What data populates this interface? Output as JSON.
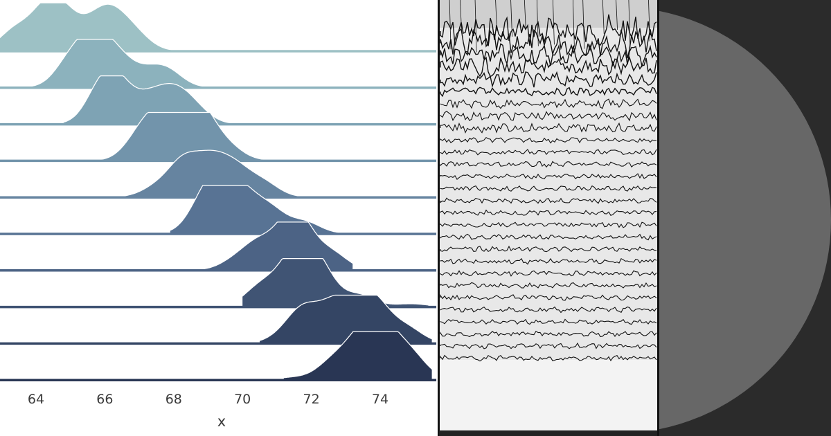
{
  "colors": {
    "ridge_palette": [
      "#9dc1c5",
      "#8cb2bd",
      "#7ea3b4",
      "#7294ab",
      "#6684a0",
      "#587394",
      "#4c6385",
      "#405474",
      "#344564",
      "#293654",
      "#1e2543"
    ],
    "ridge_outline": "#ffffff",
    "seismo_background": "#e9e9e9",
    "seismo_trace": "#111111",
    "disc_face": "#676767",
    "disc_background": "#2b2b2b"
  },
  "chart_data": {
    "type": "area",
    "chart_kind": "ridgeline density",
    "xlabel": "x",
    "ylabel": "",
    "xlim": [
      62.9,
      75.5
    ],
    "x_ticks": [
      64,
      66,
      68,
      70,
      72,
      74
    ],
    "grid": false,
    "legend": "none",
    "series": [
      {
        "peaks": [
          [
            63.4,
            0.45
          ],
          [
            64.3,
            0.85
          ],
          [
            64.9,
            0.6
          ],
          [
            65.8,
            0.55
          ],
          [
            66.3,
            0.55
          ],
          [
            66.9,
            0.3
          ]
        ],
        "range": [
          62.9,
          68.5
        ]
      },
      {
        "peaks": [
          [
            65.0,
            0.55
          ],
          [
            65.7,
            1.0
          ],
          [
            66.4,
            0.55
          ],
          [
            67.2,
            0.25
          ],
          [
            67.8,
            0.35
          ]
        ],
        "range": [
          63.7,
          69.3
        ]
      },
      {
        "peaks": [
          [
            65.9,
            0.7
          ],
          [
            66.4,
            0.7
          ],
          [
            67.3,
            0.5
          ],
          [
            68.0,
            0.6
          ],
          [
            68.6,
            0.3
          ]
        ],
        "range": [
          64.8,
          69.9
        ]
      },
      {
        "peaks": [
          [
            67.0,
            0.45
          ],
          [
            67.6,
            0.85
          ],
          [
            68.4,
            0.9
          ],
          [
            68.9,
            0.65
          ],
          [
            69.6,
            0.25
          ]
        ],
        "range": [
          65.9,
          71.5
        ]
      },
      {
        "peaks": [
          [
            67.5,
            0.2
          ],
          [
            68.3,
            0.75
          ],
          [
            69.1,
            0.7
          ],
          [
            69.8,
            0.55
          ],
          [
            70.6,
            0.3
          ]
        ],
        "range": [
          66.4,
          72.5
        ]
      },
      {
        "peaks": [
          [
            68.8,
            0.45
          ],
          [
            69.3,
            0.95
          ],
          [
            70.0,
            0.75
          ],
          [
            70.8,
            0.5
          ],
          [
            71.8,
            0.25
          ]
        ],
        "range": [
          67.9,
          72.8
        ]
      },
      {
        "peaks": [
          [
            69.8,
            0.2
          ],
          [
            70.5,
            0.55
          ],
          [
            71.4,
            0.95
          ],
          [
            71.8,
            0.45
          ],
          [
            72.6,
            0.35
          ]
        ],
        "range": [
          68.6,
          73.2
        ]
      },
      {
        "peaks": [
          [
            70.5,
            0.4
          ],
          [
            71.2,
            0.4
          ],
          [
            71.7,
            1.0
          ],
          [
            72.3,
            0.65
          ],
          [
            73.4,
            0.25
          ],
          [
            74.9,
            0.06
          ]
        ],
        "range": [
          70.0,
          75.4
        ]
      },
      {
        "peaks": [
          [
            71.2,
            0.15
          ],
          [
            71.8,
            0.7
          ],
          [
            72.7,
            0.8
          ],
          [
            73.5,
            0.75
          ],
          [
            74.0,
            0.5
          ],
          [
            74.8,
            0.3
          ]
        ],
        "range": [
          70.5,
          75.5
        ]
      },
      {
        "peaks": [
          [
            71.5,
            0.05
          ],
          [
            72.6,
            0.35
          ],
          [
            73.3,
            0.6
          ],
          [
            73.9,
            1.0
          ],
          [
            74.5,
            0.45
          ],
          [
            75.0,
            0.35
          ]
        ],
        "range": [
          71.2,
          75.5
        ]
      }
    ]
  },
  "seismogram": {
    "trace_count": 28
  },
  "disc": {
    "icon": "circle-shape"
  }
}
